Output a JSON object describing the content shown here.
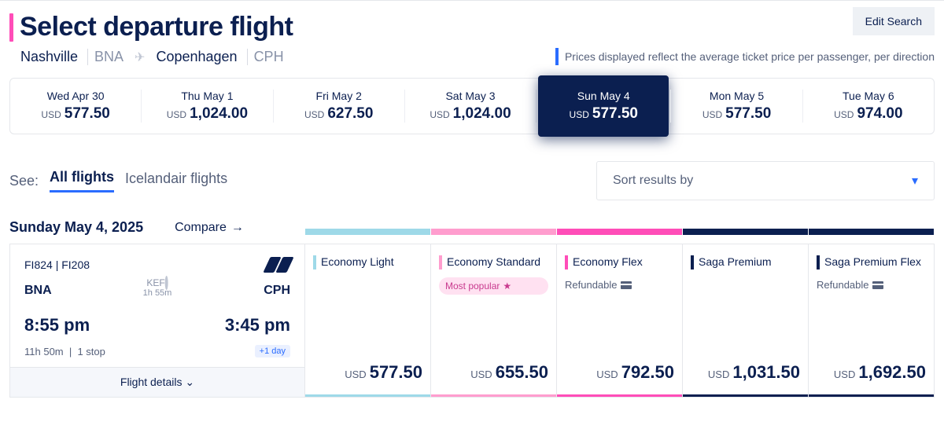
{
  "page_title": "Select departure flight",
  "route": {
    "from_city": "Nashville",
    "from_code": "BNA",
    "to_city": "Copenhagen",
    "to_code": "CPH"
  },
  "edit_search_label": "Edit Search",
  "price_note": "Prices displayed reflect the average ticket price per passenger, per direction",
  "date_strip": [
    {
      "label": "Wed Apr 30",
      "price": "577.50",
      "selected": false
    },
    {
      "label": "Thu May 1",
      "price": "1,024.00",
      "selected": false
    },
    {
      "label": "Fri May 2",
      "price": "627.50",
      "selected": false
    },
    {
      "label": "Sat May 3",
      "price": "1,024.00",
      "selected": false
    },
    {
      "label": "Sun May 4",
      "price": "577.50",
      "selected": true
    },
    {
      "label": "Mon May 5",
      "price": "577.50",
      "selected": false
    },
    {
      "label": "Tue May 6",
      "price": "974.00",
      "selected": false
    }
  ],
  "filters": {
    "see_label": "See:",
    "all": "All flights",
    "carrier": "Icelandair flights"
  },
  "sort_label": "Sort results by",
  "date_heading": "Sunday May 4, 2025",
  "compare_label": "Compare",
  "flight": {
    "numbers": "FI824 | FI208",
    "from": "BNA",
    "to": "CPH",
    "via": "KEF",
    "layover": "1h 55m",
    "dep": "8:55 pm",
    "arr": "3:45 pm",
    "duration": "11h 50m",
    "stops": "1 stop",
    "plus_day": "+1 day",
    "details_label": "Flight details"
  },
  "fares": [
    {
      "name": "Economy Light",
      "price": "577.50",
      "color": "#9ed9e8",
      "badge": null,
      "refundable": false
    },
    {
      "name": "Economy Standard",
      "price": "655.50",
      "color": "#ff9dce",
      "badge": "Most popular",
      "refundable": false
    },
    {
      "name": "Economy Flex",
      "price": "792.50",
      "color": "#ff4db8",
      "badge": null,
      "refundable": true
    },
    {
      "name": "Saga Premium",
      "price": "1,031.50",
      "color": "#0b1f50",
      "badge": null,
      "refundable": false
    },
    {
      "name": "Saga Premium Flex",
      "price": "1,692.50",
      "color": "#0b1f50",
      "badge": null,
      "refundable": true
    }
  ],
  "refundable_label": "Refundable",
  "currency": "USD"
}
